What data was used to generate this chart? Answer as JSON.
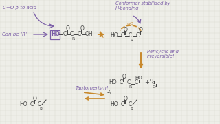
{
  "bg_color": "#eeeee8",
  "grid_color": "#d8d6cc",
  "purple": "#7b5ea7",
  "orange": "#c8882a",
  "dark": "#444444",
  "annotation_top_left": "C=O β to acid",
  "annotation_can_be": "Can be ‘R’",
  "annotation_conformer": "Conformer stabilised by\nH-bonding",
  "annotation_pericyclic": "Pericyclic and\nirreversible!",
  "annotation_tautomerism": "Tautomerism!"
}
